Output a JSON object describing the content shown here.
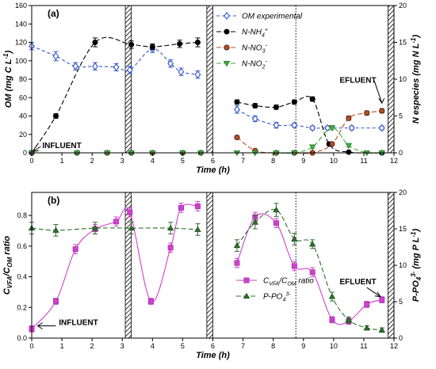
{
  "chart_data": [
    {
      "type": "line",
      "panel_label": "(a)",
      "xlabel": "Time (h)",
      "ylabel": "OM (mg C L-1)",
      "ylabel_right": "N especies (mg N L-1)",
      "x_ticks": [
        "0",
        "1",
        "2",
        "3",
        "4",
        "5",
        "6",
        "7",
        "8",
        "9",
        "10",
        "11",
        "12"
      ],
      "y_ticks": [
        "0",
        "20",
        "40",
        "60",
        "80",
        "100",
        "120",
        "140",
        "160"
      ],
      "y2_ticks": [
        "0",
        "5",
        "10",
        "15",
        "20"
      ],
      "xlim": [
        0,
        12
      ],
      "ylim": [
        0,
        160
      ],
      "y2lim": [
        0,
        20
      ],
      "hatch_bands": [
        [
          3.1,
          3.3
        ],
        [
          5.8,
          6.0
        ],
        [
          11.8,
          12.0
        ]
      ],
      "dotted_line_x": 8.75,
      "annotations": {
        "influent": "INFLUENT",
        "efluent": "EFLUENT"
      },
      "series": [
        {
          "name": "OM experimental",
          "axis": "left",
          "color": "#3355cc",
          "marker": "diamond-open",
          "dash": "4,3",
          "smooth": true,
          "segments": [
            [
              [
                0,
                116
              ],
              [
                0.8,
                105
              ],
              [
                1.45,
                94
              ],
              [
                2.1,
                94
              ],
              [
                2.8,
                93
              ],
              [
                3.25,
                90
              ],
              [
                4,
                113
              ],
              [
                4.6,
                97
              ],
              [
                4.95,
                88
              ],
              [
                5.5,
                85
              ]
            ],
            [
              [
                6.8,
                47
              ],
              [
                7.4,
                37
              ],
              [
                8.1,
                30
              ],
              [
                8.7,
                30
              ],
              [
                9.3,
                27
              ],
              [
                9.8,
                27
              ],
              [
                10.6,
                27
              ],
              [
                11.6,
                27
              ]
            ]
          ],
          "errors": [
            4,
            5,
            4,
            4,
            4,
            4,
            4,
            4,
            4,
            4,
            4,
            3,
            3,
            2,
            2,
            2,
            2,
            2
          ]
        },
        {
          "name": "N-NH4+",
          "axis": "right",
          "color": "#000000",
          "marker": "circle",
          "dash": "6,3",
          "smooth": true,
          "segments": [
            [
              [
                0,
                0
              ],
              [
                0.8,
                5
              ],
              [
                2.1,
                15
              ],
              [
                3.3,
                14.7
              ],
              [
                4,
                14.4
              ],
              [
                4.9,
                14.8
              ],
              [
                5.5,
                15
              ]
            ],
            [
              [
                6.8,
                6.9
              ],
              [
                7.4,
                6.4
              ],
              [
                8.1,
                6.2
              ],
              [
                8.7,
                6.9
              ],
              [
                9.3,
                7.3
              ],
              [
                9.85,
                1.2
              ],
              [
                10.5,
                0.1
              ],
              [
                11.6,
                0
              ]
            ]
          ],
          "errors": [
            0.2,
            0.3,
            0.6,
            0.5,
            0.4,
            0.5,
            0.6,
            0.3,
            0.3,
            0.3,
            0.3,
            0.3,
            0.2,
            0.1,
            0.1
          ]
        },
        {
          "name": "N-NO3-",
          "axis": "right",
          "color": "#b84c24",
          "marker": "circle",
          "dash": "6,3",
          "smooth": true,
          "segments": [
            [
              [
                0,
                0
              ],
              [
                1.5,
                0
              ],
              [
                2.5,
                0
              ],
              [
                3.3,
                0
              ],
              [
                4,
                0
              ],
              [
                5,
                0
              ],
              [
                5.6,
                0
              ]
            ],
            [
              [
                6.8,
                2.1
              ],
              [
                7.4,
                0.3
              ],
              [
                8.1,
                0
              ],
              [
                8.7,
                0
              ],
              [
                9.3,
                0
              ],
              [
                9.95,
                1.2
              ],
              [
                10.5,
                4.7
              ],
              [
                11.1,
                5.4
              ],
              [
                11.6,
                5.7
              ]
            ]
          ],
          "errors": [
            0,
            0,
            0,
            0,
            0,
            0,
            0,
            0.2,
            0.1,
            0,
            0,
            0,
            0.2,
            0.3,
            0.3,
            0.3
          ]
        },
        {
          "name": "N-NO2-",
          "axis": "right",
          "color": "#3fae3f",
          "marker": "triangle-down",
          "dash": "6,3",
          "smooth": true,
          "segments": [
            [
              [
                0,
                0
              ],
              [
                1.5,
                0
              ],
              [
                2.5,
                0
              ],
              [
                3.3,
                0
              ],
              [
                4,
                0
              ],
              [
                5,
                0
              ],
              [
                5.6,
                0
              ]
            ],
            [
              [
                6.8,
                0
              ],
              [
                7.4,
                0
              ],
              [
                8.1,
                0
              ],
              [
                8.7,
                0
              ],
              [
                9.3,
                0.8
              ],
              [
                9.95,
                3.4
              ],
              [
                10.5,
                1
              ],
              [
                11.1,
                0
              ],
              [
                11.6,
                0
              ]
            ]
          ],
          "errors": [
            0,
            0,
            0,
            0,
            0,
            0,
            0,
            0,
            0,
            0,
            0,
            0.2,
            0.3,
            0.2,
            0,
            0
          ]
        }
      ],
      "legend": {
        "placement": "top-right-inside"
      }
    },
    {
      "type": "line",
      "panel_label": "(b)",
      "xlabel": "Time (h)",
      "ylabel": "CVFA/COM ratio",
      "ylabel_right": "P-PO43- (mg P L-1)",
      "x_ticks": [
        "0",
        "1",
        "2",
        "3",
        "4",
        "5",
        "6",
        "7",
        "8",
        "9",
        "10",
        "11",
        "12"
      ],
      "y_ticks": [
        "0.0",
        "0.2",
        "0.4",
        "0.6",
        "0.8"
      ],
      "y2_ticks": [
        "0",
        "5",
        "10",
        "15",
        "20"
      ],
      "xlim": [
        0,
        12
      ],
      "ylim": [
        0,
        0.95
      ],
      "y2lim": [
        0,
        20
      ],
      "hatch_bands": [
        [
          3.1,
          3.3
        ],
        [
          5.8,
          6.0
        ],
        [
          11.8,
          12.0
        ]
      ],
      "dotted_line_x": 8.75,
      "annotations": {
        "influent": "INFLUENT",
        "efluent": "EFLUENT"
      },
      "series": [
        {
          "name": "CVFA/COM ratio",
          "axis": "left",
          "color": "#d040d0",
          "marker": "square",
          "dash": "",
          "smooth": true,
          "segments": [
            [
              [
                0,
                0.06
              ],
              [
                0.8,
                0.24
              ],
              [
                1.45,
                0.58
              ],
              [
                2.1,
                0.71
              ],
              [
                2.8,
                0.76
              ],
              [
                3.25,
                0.82
              ],
              [
                3.95,
                0.24
              ],
              [
                4.6,
                0.59
              ],
              [
                4.95,
                0.85
              ],
              [
                5.5,
                0.86
              ]
            ],
            [
              [
                6.8,
                0.49
              ],
              [
                7.4,
                0.79
              ],
              [
                8.1,
                0.75
              ],
              [
                8.7,
                0.47
              ],
              [
                9.3,
                0.43
              ],
              [
                9.95,
                0.12
              ],
              [
                10.5,
                0.11
              ],
              [
                11.1,
                0.22
              ],
              [
                11.6,
                0.25
              ]
            ]
          ],
          "errors": [
            0.02,
            0.02,
            0.03,
            0.03,
            0.03,
            0.03,
            0.02,
            0.03,
            0.03,
            0.03,
            0.03,
            0.03,
            0.03,
            0.03,
            0.03,
            0.02,
            0.02,
            0.02,
            0.02
          ]
        },
        {
          "name": "P-PO43-",
          "axis": "right",
          "color": "#2d6e2d",
          "marker": "triangle",
          "dash": "6,3",
          "smooth": true,
          "segments": [
            [
              [
                0,
                15.1
              ],
              [
                0.8,
                14.8
              ],
              [
                2.1,
                15.1
              ],
              [
                3.3,
                15.1
              ],
              [
                4.6,
                15.1
              ],
              [
                5.5,
                14.9
              ]
            ],
            [
              [
                6.8,
                12.7
              ],
              [
                7.4,
                15.9
              ],
              [
                8.1,
                17.6
              ],
              [
                8.7,
                13.6
              ],
              [
                9.3,
                12.9
              ],
              [
                9.95,
                5.7
              ],
              [
                10.5,
                2.5
              ],
              [
                11.1,
                1.4
              ],
              [
                11.6,
                1.1
              ]
            ]
          ],
          "errors": [
            0.8,
            0.8,
            0.8,
            0.8,
            0.8,
            0.8,
            0.8,
            0.9,
            0.9,
            0.8,
            0.6,
            0.6,
            0.4,
            0.3,
            0.3
          ]
        }
      ],
      "legend": {
        "placement": "bottom-center-right"
      }
    }
  ]
}
